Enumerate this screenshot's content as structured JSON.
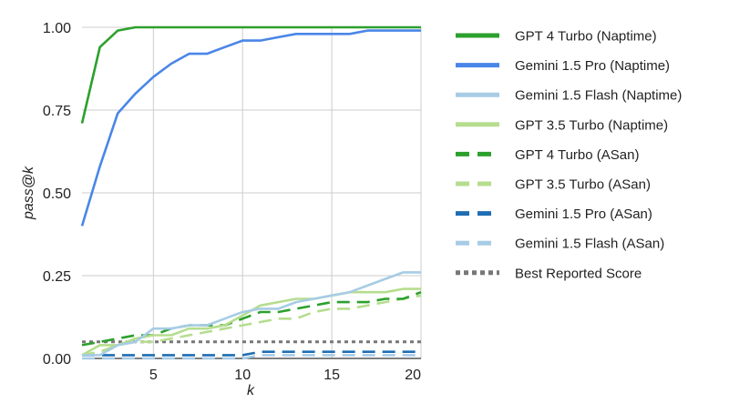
{
  "chart_data": {
    "type": "line",
    "title": "",
    "xlabel": "k",
    "ylabel": "pass@k",
    "xlim": [
      1,
      20
    ],
    "ylim": [
      0,
      1
    ],
    "xticks": [
      5,
      10,
      15,
      20
    ],
    "yticks": [
      0,
      0.25,
      0.5,
      0.75,
      1
    ],
    "xtick_labels": [
      "5",
      "10",
      "15",
      "20"
    ],
    "ytick_labels": [
      "0.00",
      "0.25",
      "0.50",
      "0.75",
      "1.00"
    ],
    "grid": true,
    "legend_position": "right",
    "x": [
      1,
      2,
      3,
      4,
      5,
      6,
      7,
      8,
      9,
      10,
      11,
      12,
      13,
      14,
      15,
      16,
      17,
      18,
      19,
      20
    ],
    "series": [
      {
        "name": "GPT 4 Turbo (Naptime)",
        "color": "#2ca02c",
        "style": "solid",
        "values": [
          0.71,
          0.94,
          0.99,
          1.0,
          1.0,
          1.0,
          1.0,
          1.0,
          1.0,
          1.0,
          1.0,
          1.0,
          1.0,
          1.0,
          1.0,
          1.0,
          1.0,
          1.0,
          1.0,
          1.0
        ]
      },
      {
        "name": "Gemini 1.5 Pro (Naptime)",
        "color": "#4a86e8",
        "style": "solid",
        "values": [
          0.4,
          0.58,
          0.74,
          0.8,
          0.85,
          0.89,
          0.92,
          0.92,
          0.94,
          0.96,
          0.96,
          0.97,
          0.98,
          0.98,
          0.98,
          0.98,
          0.99,
          0.99,
          0.99,
          0.99
        ]
      },
      {
        "name": "Gemini 1.5 Flash (Naptime)",
        "color": "#a7cce5",
        "style": "solid",
        "values": [
          0.01,
          0.01,
          0.04,
          0.05,
          0.09,
          0.09,
          0.1,
          0.1,
          0.12,
          0.14,
          0.15,
          0.15,
          0.17,
          0.18,
          0.19,
          0.2,
          0.22,
          0.24,
          0.26,
          0.26
        ]
      },
      {
        "name": "GPT 3.5 Turbo (Naptime)",
        "color": "#b5dd8e",
        "style": "solid",
        "values": [
          0.01,
          0.04,
          0.04,
          0.06,
          0.07,
          0.07,
          0.09,
          0.09,
          0.1,
          0.13,
          0.16,
          0.17,
          0.18,
          0.18,
          0.19,
          0.2,
          0.2,
          0.2,
          0.21,
          0.21
        ]
      },
      {
        "name": "GPT 4 Turbo (ASan)",
        "color": "#2ca02c",
        "style": "dashed",
        "values": [
          0.04,
          0.05,
          0.06,
          0.07,
          0.07,
          0.09,
          0.1,
          0.1,
          0.1,
          0.12,
          0.14,
          0.14,
          0.15,
          0.16,
          0.17,
          0.17,
          0.17,
          0.18,
          0.18,
          0.2
        ]
      },
      {
        "name": "GPT 3.5 Turbo (ASan)",
        "color": "#b5dd8e",
        "style": "dashed",
        "values": [
          0.01,
          0.02,
          0.04,
          0.05,
          0.05,
          0.06,
          0.07,
          0.08,
          0.09,
          0.1,
          0.11,
          0.12,
          0.12,
          0.14,
          0.15,
          0.15,
          0.16,
          0.17,
          0.18,
          0.19
        ]
      },
      {
        "name": "Gemini 1.5 Pro (ASan)",
        "color": "#1f6db3",
        "style": "dashed",
        "values": [
          0.01,
          0.01,
          0.01,
          0.01,
          0.01,
          0.01,
          0.01,
          0.01,
          0.01,
          0.01,
          0.02,
          0.02,
          0.02,
          0.02,
          0.02,
          0.02,
          0.02,
          0.02,
          0.02,
          0.02
        ]
      },
      {
        "name": "Gemini 1.5 Flash (ASan)",
        "color": "#a7cce5",
        "style": "dashed",
        "values": [
          0.0,
          0.0,
          0.0,
          0.0,
          0.0,
          0.0,
          0.0,
          0.0,
          0.0,
          0.0,
          0.01,
          0.01,
          0.01,
          0.01,
          0.01,
          0.01,
          0.01,
          0.01,
          0.01,
          0.01
        ]
      },
      {
        "name": "Best Reported Score",
        "color": "#777777",
        "style": "dotted",
        "values": [
          0.05,
          0.05,
          0.05,
          0.05,
          0.05,
          0.05,
          0.05,
          0.05,
          0.05,
          0.05,
          0.05,
          0.05,
          0.05,
          0.05,
          0.05,
          0.05,
          0.05,
          0.05,
          0.05,
          0.05
        ]
      }
    ]
  }
}
